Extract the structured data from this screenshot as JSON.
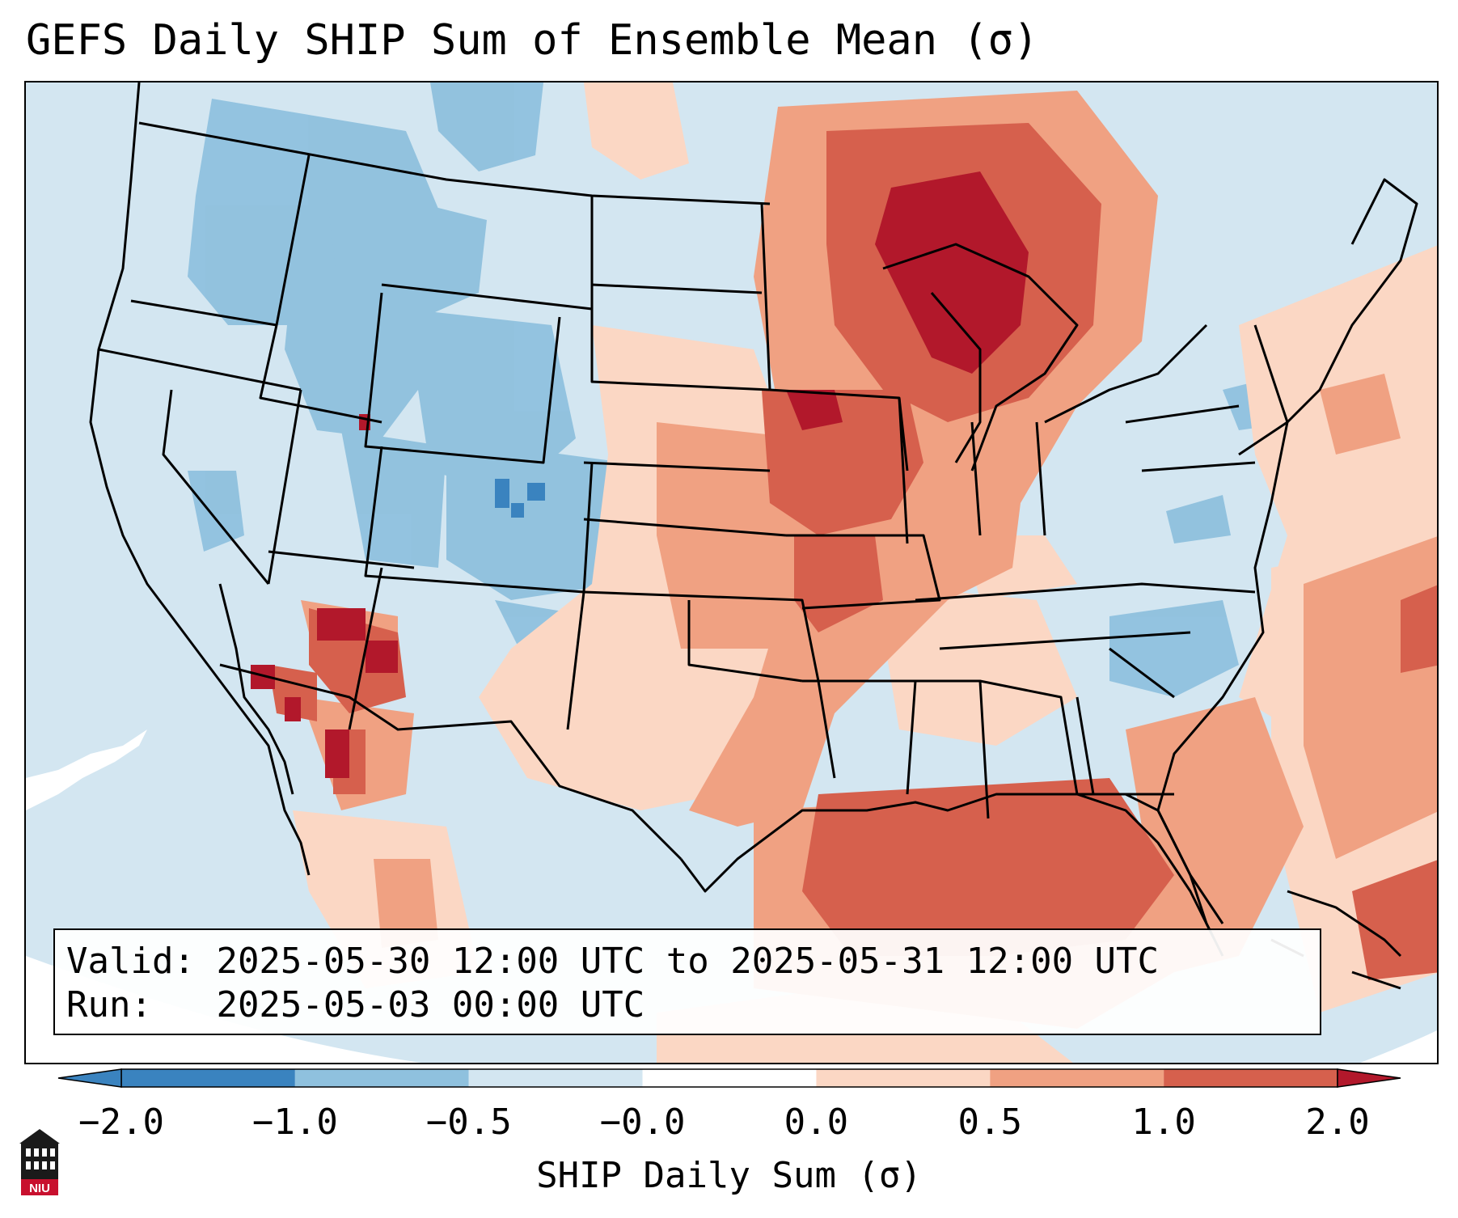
{
  "title": "GEFS Daily SHIP Sum of Ensemble Mean (σ)",
  "info": {
    "valid_label": "Valid:",
    "valid_value": "2025-05-30 12:00 UTC to 2025-05-31 12:00 UTC",
    "run_label": "Run:",
    "run_value": "2025-05-03 00:00 UTC"
  },
  "colorbar": {
    "label": "SHIP Daily Sum (σ)",
    "ticks": [
      "−2.0",
      "−1.0",
      "−0.5",
      "−0.0",
      "0.0",
      "0.5",
      "1.0",
      "2.0"
    ],
    "colors": [
      "#3a83bf",
      "#8fc1de",
      "#d3e6f1",
      "#ffffff",
      "#fbd7c4",
      "#f0a182",
      "#d6604d",
      "#b2182b"
    ]
  },
  "logo": {
    "text": "NIU",
    "icon": "niu-building-icon"
  }
}
